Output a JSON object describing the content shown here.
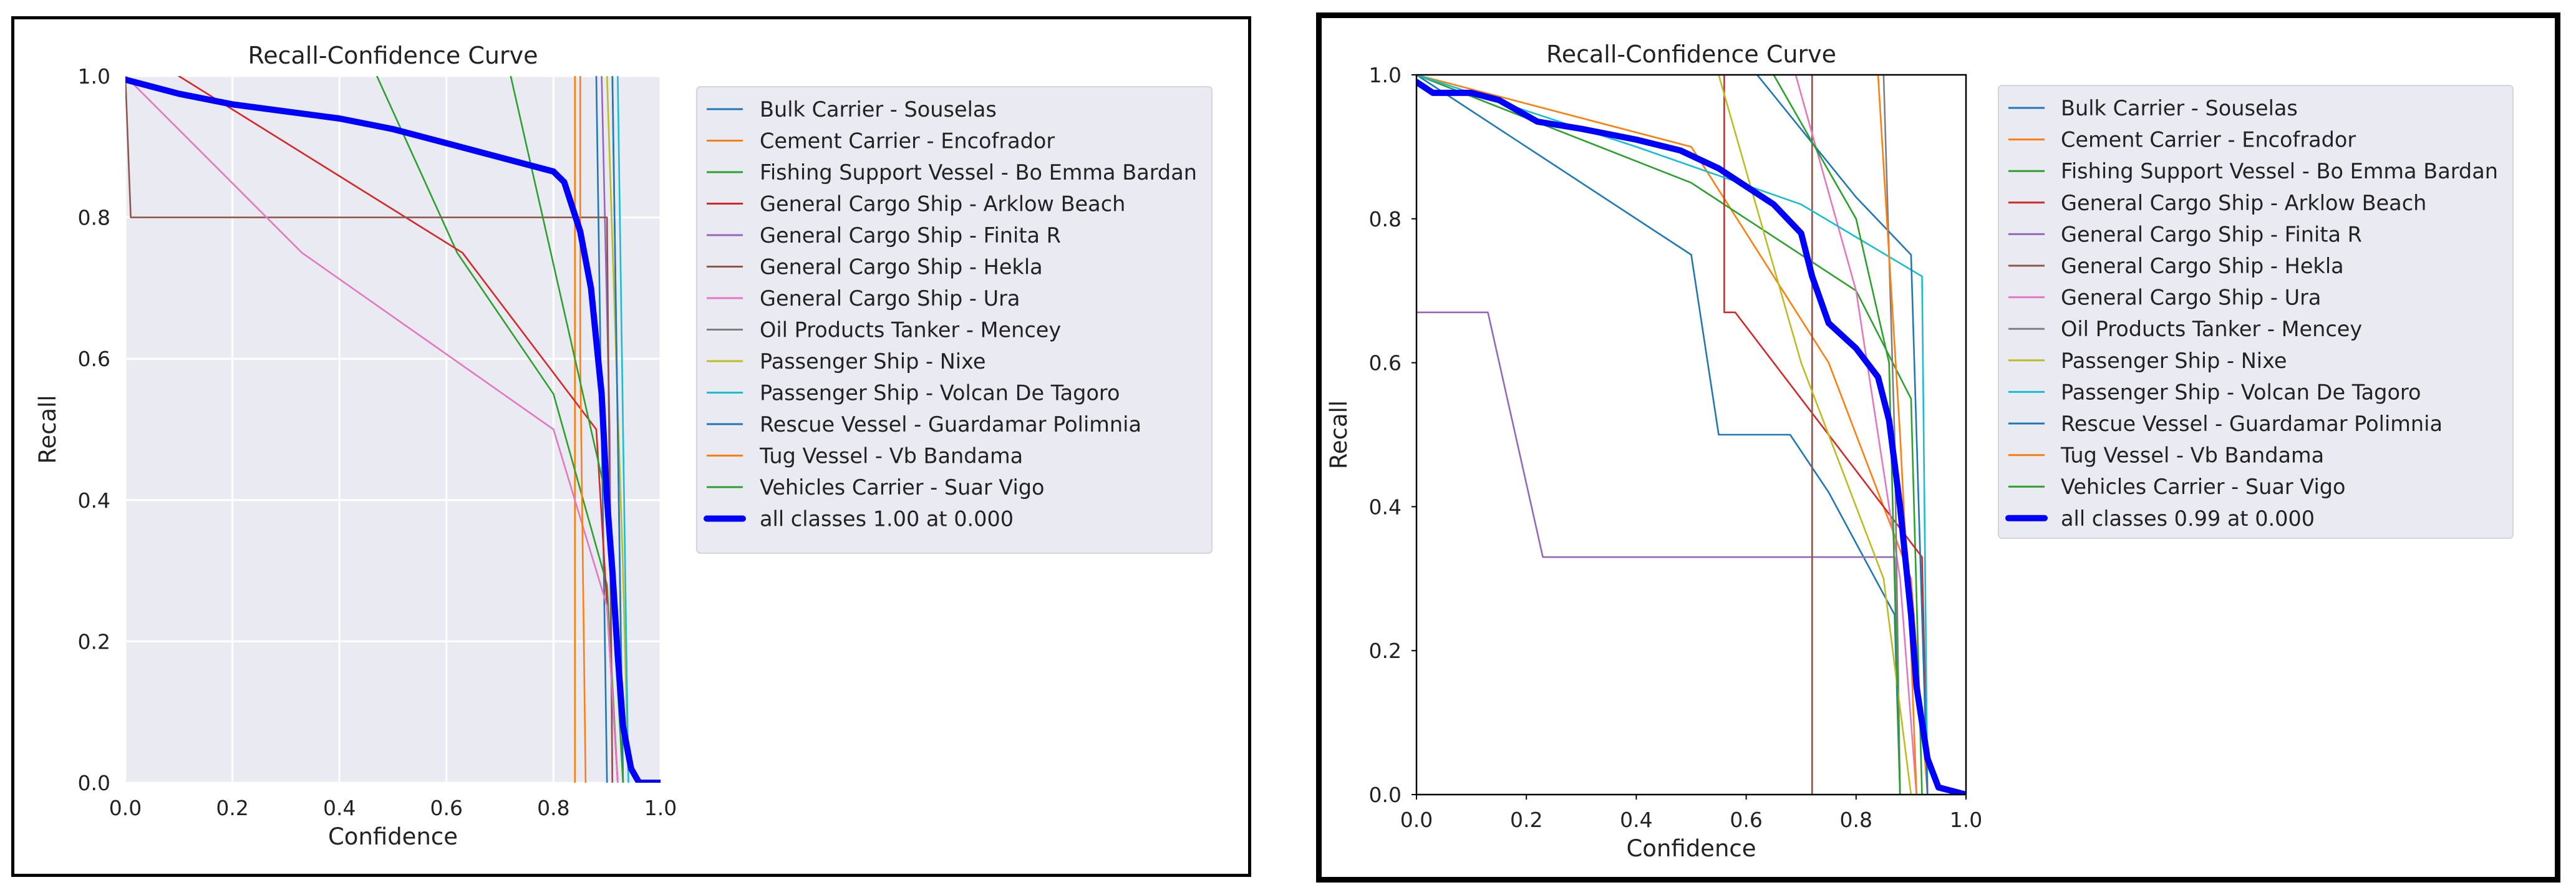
{
  "chart_data": [
    {
      "type": "line",
      "title": "Recall-Confidence Curve",
      "xlabel": "Confidence",
      "ylabel": "Recall",
      "xlim": [
        0,
        1
      ],
      "ylim": [
        0,
        1
      ],
      "x_ticks": [
        "0.0",
        "0.2",
        "0.4",
        "0.6",
        "0.8",
        "1.0"
      ],
      "y_ticks": [
        "0.0",
        "0.2",
        "0.4",
        "0.6",
        "0.8",
        "1.0"
      ],
      "grid": true,
      "background": "#eaeaf2",
      "legend_position": "right, outside",
      "series": [
        {
          "name": "Bulk Carrier - Souselas",
          "color": "#1f77b4",
          "points": [
            [
              0.88,
              1.0
            ],
            [
              0.89,
              0.5
            ],
            [
              0.9,
              0.0
            ]
          ]
        },
        {
          "name": "Cement Carrier - Encofrador",
          "color": "#ff7f0e",
          "points": [
            [
              0.84,
              1.0
            ],
            [
              0.84,
              0.0
            ]
          ]
        },
        {
          "name": "Fishing Support Vessel - Bo Emma Bardan",
          "color": "#2ca02c",
          "points": [
            [
              0.47,
              1.0
            ],
            [
              0.62,
              0.75
            ],
            [
              0.8,
              0.55
            ],
            [
              0.9,
              0.28
            ],
            [
              0.92,
              0.0
            ]
          ]
        },
        {
          "name": "General Cargo Ship - Arklow Beach",
          "color": "#d62728",
          "points": [
            [
              0.1,
              1.0
            ],
            [
              0.63,
              0.75
            ],
            [
              0.88,
              0.5
            ],
            [
              0.92,
              0.0
            ]
          ]
        },
        {
          "name": "General Cargo Ship - Finita R",
          "color": "#9467bd",
          "points": [
            [
              0.89,
              1.0
            ],
            [
              0.905,
              0.5
            ],
            [
              0.91,
              0.0
            ]
          ]
        },
        {
          "name": "General Cargo Ship - Hekla",
          "color": "#8c564b",
          "points": [
            [
              0.0,
              1.0
            ],
            [
              0.01,
              0.8
            ],
            [
              0.9,
              0.8
            ],
            [
              0.91,
              0.0
            ]
          ]
        },
        {
          "name": "General Cargo Ship - Ura",
          "color": "#e377c2",
          "points": [
            [
              0.0,
              1.0
            ],
            [
              0.33,
              0.75
            ],
            [
              0.8,
              0.5
            ],
            [
              0.9,
              0.25
            ],
            [
              0.92,
              0.0
            ]
          ]
        },
        {
          "name": "Oil Products Tanker - Mencey",
          "color": "#7f7f7f",
          "points": [
            [
              0.91,
              1.0
            ],
            [
              0.93,
              0.0
            ]
          ]
        },
        {
          "name": "Passenger Ship - Nixe",
          "color": "#bcbd22",
          "points": [
            [
              0.9,
              1.0
            ],
            [
              0.93,
              0.3
            ],
            [
              0.94,
              0.0
            ]
          ]
        },
        {
          "name": "Passenger Ship - Volcan De Tagoro",
          "color": "#17becf",
          "points": [
            [
              0.92,
              1.0
            ],
            [
              0.93,
              0.5
            ],
            [
              0.94,
              0.0
            ]
          ]
        },
        {
          "name": "Rescue Vessel - Guardamar Polimnia",
          "color": "#1f77b4",
          "points": [
            [
              0.91,
              1.0
            ],
            [
              0.92,
              0.5
            ],
            [
              0.93,
              0.0
            ]
          ]
        },
        {
          "name": "Tug Vessel - Vb Bandama",
          "color": "#ff7f0e",
          "points": [
            [
              0.85,
              1.0
            ],
            [
              0.85,
              0.6
            ],
            [
              0.86,
              0.0
            ]
          ]
        },
        {
          "name": "Vehicles Carrier - Suar Vigo",
          "color": "#2ca02c",
          "points": [
            [
              0.72,
              1.0
            ],
            [
              0.9,
              0.4
            ],
            [
              0.93,
              0.0
            ]
          ]
        },
        {
          "name": "all classes 1.00 at 0.000",
          "color": "#0000ff",
          "thick": true,
          "points": [
            [
              0.0,
              0.995
            ],
            [
              0.05,
              0.985
            ],
            [
              0.1,
              0.975
            ],
            [
              0.2,
              0.96
            ],
            [
              0.3,
              0.95
            ],
            [
              0.4,
              0.94
            ],
            [
              0.5,
              0.925
            ],
            [
              0.6,
              0.905
            ],
            [
              0.7,
              0.885
            ],
            [
              0.8,
              0.865
            ],
            [
              0.82,
              0.85
            ],
            [
              0.85,
              0.78
            ],
            [
              0.87,
              0.7
            ],
            [
              0.89,
              0.55
            ],
            [
              0.9,
              0.4
            ],
            [
              0.91,
              0.3
            ],
            [
              0.92,
              0.18
            ],
            [
              0.93,
              0.08
            ],
            [
              0.945,
              0.02
            ],
            [
              0.96,
              0.0
            ],
            [
              1.0,
              0.0
            ]
          ]
        }
      ]
    },
    {
      "type": "line",
      "title": "Recall-Confidence Curve",
      "xlabel": "Confidence",
      "ylabel": "Recall",
      "xlim": [
        0,
        1
      ],
      "ylim": [
        0,
        1
      ],
      "x_ticks": [
        "0.0",
        "0.2",
        "0.4",
        "0.6",
        "0.8",
        "1.0"
      ],
      "y_ticks": [
        "0.0",
        "0.2",
        "0.4",
        "0.6",
        "0.8",
        "1.0"
      ],
      "grid": false,
      "background": "#ffffff",
      "legend_position": "right, outside",
      "series": [
        {
          "name": "Bulk Carrier - Souselas",
          "color": "#1f77b4",
          "points": [
            [
              0.0,
              1.0
            ],
            [
              0.5,
              0.75
            ],
            [
              0.55,
              0.5
            ],
            [
              0.68,
              0.5
            ],
            [
              0.75,
              0.42
            ],
            [
              0.87,
              0.25
            ],
            [
              0.88,
              0.0
            ]
          ]
        },
        {
          "name": "Cement Carrier - Encofrador",
          "color": "#ff7f0e",
          "points": [
            [
              0.0,
              1.0
            ],
            [
              0.5,
              0.9
            ],
            [
              0.75,
              0.6
            ],
            [
              0.85,
              0.4
            ],
            [
              0.9,
              0.3
            ],
            [
              0.93,
              0.0
            ]
          ]
        },
        {
          "name": "Fishing Support Vessel - Bo Emma Bardan",
          "color": "#2ca02c",
          "points": [
            [
              0.0,
              1.0
            ],
            [
              0.5,
              0.85
            ],
            [
              0.8,
              0.7
            ],
            [
              0.9,
              0.55
            ],
            [
              0.92,
              0.0
            ]
          ]
        },
        {
          "name": "General Cargo Ship - Arklow Beach",
          "color": "#d62728",
          "points": [
            [
              0.56,
              1.0
            ],
            [
              0.56,
              0.67
            ],
            [
              0.58,
              0.67
            ],
            [
              0.92,
              0.33
            ],
            [
              0.93,
              0.0
            ]
          ]
        },
        {
          "name": "General Cargo Ship - Finita R",
          "color": "#9467bd",
          "points": [
            [
              0.0,
              0.67
            ],
            [
              0.13,
              0.67
            ],
            [
              0.23,
              0.33
            ],
            [
              0.87,
              0.33
            ],
            [
              0.88,
              0.0
            ]
          ]
        },
        {
          "name": "General Cargo Ship - Hekla",
          "color": "#8c564b",
          "points": [
            [
              0.72,
              1.0
            ],
            [
              0.72,
              0.0
            ]
          ]
        },
        {
          "name": "General Cargo Ship - Ura",
          "color": "#e377c2",
          "points": [
            [
              0.69,
              1.0
            ],
            [
              0.8,
              0.7
            ],
            [
              0.88,
              0.3
            ],
            [
              0.91,
              0.0
            ]
          ]
        },
        {
          "name": "Oil Products Tanker - Mencey",
          "color": "#7f7f7f",
          "points": [
            [
              0.85,
              1.0
            ],
            [
              0.87,
              0.5
            ],
            [
              0.88,
              0.0
            ]
          ]
        },
        {
          "name": "Passenger Ship - Nixe",
          "color": "#bcbd22",
          "points": [
            [
              0.55,
              1.0
            ],
            [
              0.7,
              0.6
            ],
            [
              0.85,
              0.3
            ],
            [
              0.9,
              0.0
            ]
          ]
        },
        {
          "name": "Passenger Ship - Volcan De Tagoro",
          "color": "#17becf",
          "points": [
            [
              0.0,
              1.0
            ],
            [
              0.4,
              0.9
            ],
            [
              0.7,
              0.82
            ],
            [
              0.92,
              0.72
            ],
            [
              0.93,
              0.0
            ]
          ]
        },
        {
          "name": "Rescue Vessel - Guardamar Polimnia",
          "color": "#1f77b4",
          "points": [
            [
              0.62,
              1.0
            ],
            [
              0.8,
              0.83
            ],
            [
              0.9,
              0.75
            ],
            [
              0.93,
              0.0
            ]
          ]
        },
        {
          "name": "Tug Vessel - Vb Bandama",
          "color": "#ff7f0e",
          "points": [
            [
              0.84,
              1.0
            ],
            [
              0.88,
              0.5
            ],
            [
              0.9,
              0.2
            ],
            [
              0.91,
              0.0
            ]
          ]
        },
        {
          "name": "Vehicles Carrier - Suar Vigo",
          "color": "#2ca02c",
          "points": [
            [
              0.65,
              1.0
            ],
            [
              0.8,
              0.8
            ],
            [
              0.86,
              0.6
            ],
            [
              0.88,
              0.0
            ]
          ]
        },
        {
          "name": "all classes 0.99 at 0.000",
          "color": "#0000ff",
          "thick": true,
          "points": [
            [
              0.0,
              0.99
            ],
            [
              0.03,
              0.975
            ],
            [
              0.1,
              0.975
            ],
            [
              0.15,
              0.965
            ],
            [
              0.22,
              0.935
            ],
            [
              0.3,
              0.925
            ],
            [
              0.4,
              0.91
            ],
            [
              0.48,
              0.895
            ],
            [
              0.55,
              0.87
            ],
            [
              0.6,
              0.845
            ],
            [
              0.65,
              0.82
            ],
            [
              0.7,
              0.78
            ],
            [
              0.72,
              0.72
            ],
            [
              0.75,
              0.655
            ],
            [
              0.8,
              0.62
            ],
            [
              0.84,
              0.58
            ],
            [
              0.86,
              0.52
            ],
            [
              0.88,
              0.4
            ],
            [
              0.9,
              0.25
            ],
            [
              0.91,
              0.15
            ],
            [
              0.93,
              0.05
            ],
            [
              0.95,
              0.01
            ],
            [
              1.0,
              0.0
            ]
          ]
        }
      ]
    }
  ]
}
